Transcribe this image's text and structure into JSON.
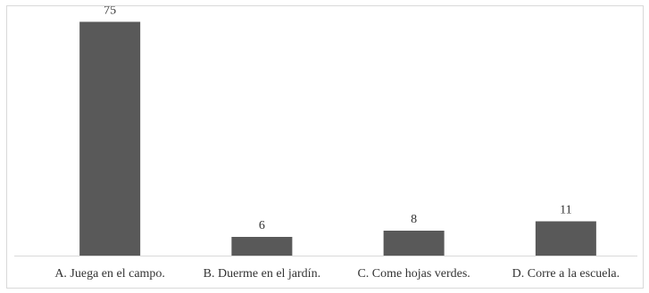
{
  "chart_data": {
    "type": "bar",
    "title": "",
    "xlabel": "",
    "ylabel": "",
    "categories": [
      "A. Juega en el campo.",
      "B. Duerme en el jardín.",
      "C. Come hojas verdes.",
      "D. Corre a la escuela."
    ],
    "values": [
      75,
      6,
      8,
      11
    ],
    "data_labels": [
      "75",
      "6",
      "8",
      "11"
    ],
    "ylim": [
      0,
      80
    ],
    "grid": false,
    "legend": "none",
    "colors": {
      "bar": "#595959",
      "axis": "#d9d9d9",
      "border": "#d9d9d9",
      "text": "#333333"
    }
  }
}
